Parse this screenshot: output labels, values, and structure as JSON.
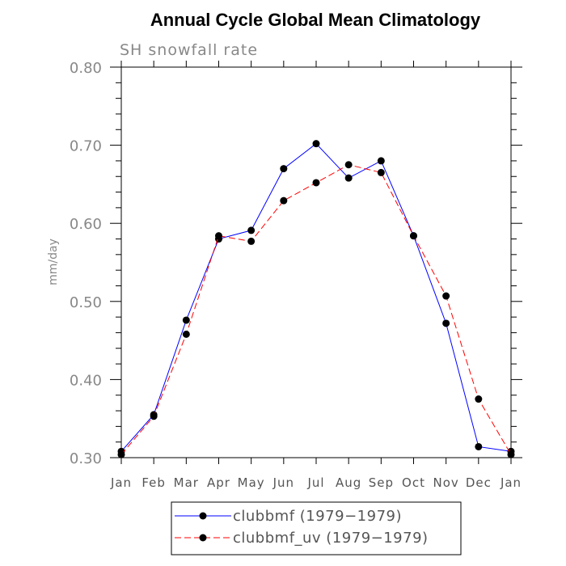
{
  "chart_data": {
    "type": "line",
    "title": "Annual Cycle Global Mean Climatology",
    "subtitle": "SH snowfall rate",
    "xlabel": "",
    "ylabel": "mm/day",
    "categories": [
      "Jan",
      "Feb",
      "Mar",
      "Apr",
      "May",
      "Jun",
      "Jul",
      "Aug",
      "Sep",
      "Oct",
      "Nov",
      "Dec",
      "Jan"
    ],
    "ylim": [
      0.3,
      0.8
    ],
    "yticks": [
      0.3,
      0.4,
      0.5,
      0.6,
      0.7,
      0.8
    ],
    "ytick_labels": [
      "0.30",
      "0.40",
      "0.50",
      "0.60",
      "0.70",
      "0.80"
    ],
    "series": [
      {
        "name": "clubbmf (1979−1979)",
        "color": "#0000ff",
        "dash": "solid",
        "values": [
          0.308,
          0.355,
          0.476,
          0.58,
          0.591,
          0.67,
          0.702,
          0.658,
          0.68,
          0.584,
          0.472,
          0.314,
          0.308
        ]
      },
      {
        "name": "clubbmf_uv (1979−1979)",
        "color": "#ff0000",
        "dash": "dashed",
        "values": [
          0.304,
          0.353,
          0.458,
          0.584,
          0.577,
          0.629,
          0.652,
          0.675,
          0.665,
          0.584,
          0.507,
          0.375,
          0.304
        ]
      }
    ],
    "legend_position": "bottom"
  }
}
